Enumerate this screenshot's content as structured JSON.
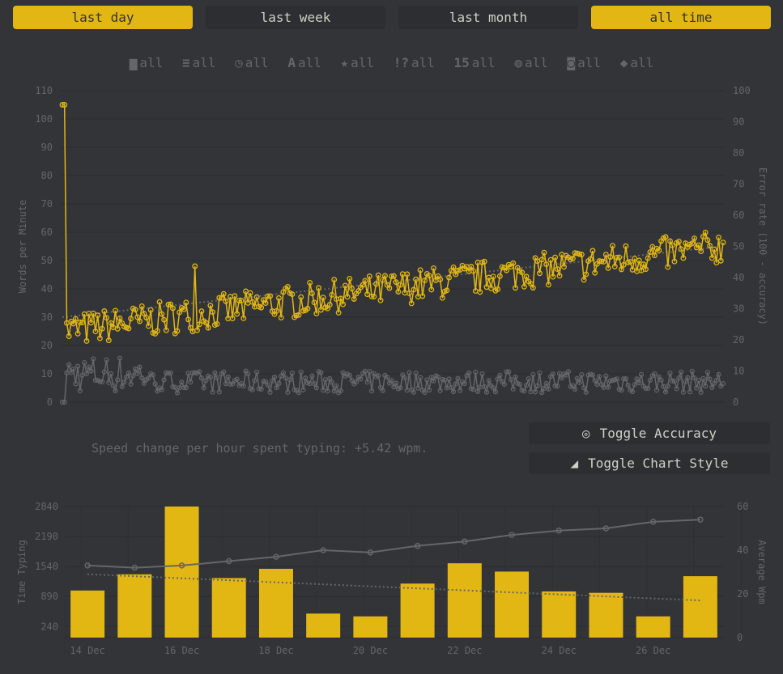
{
  "period_buttons": [
    "last day",
    "last week",
    "last month",
    "all time"
  ],
  "active_period": [
    "last day",
    "all time"
  ],
  "filters": [
    {
      "icon": "calendar-icon",
      "glyph": "▆",
      "label": "all"
    },
    {
      "icon": "list-icon",
      "glyph": "≡",
      "label": "all"
    },
    {
      "icon": "clock-icon",
      "glyph": "◷",
      "label": "all"
    },
    {
      "icon": "language-icon",
      "glyph": "A",
      "label": "all"
    },
    {
      "icon": "star-icon",
      "glyph": "★",
      "label": "all"
    },
    {
      "icon": "punctuation-icon",
      "glyph": "!?",
      "label": "all"
    },
    {
      "icon": "length-icon",
      "glyph": "15",
      "label": "all"
    },
    {
      "icon": "globe-icon",
      "glyph": "◍",
      "label": "all"
    },
    {
      "icon": "gamepad-icon",
      "glyph": "◙",
      "label": "all"
    },
    {
      "icon": "tag-icon",
      "glyph": "◆",
      "label": "all"
    }
  ],
  "speed_change": "Speed change per hour spent typing: +5.42 wpm.",
  "toggle_accuracy": "Toggle Accuracy",
  "toggle_chart_style": "Toggle Chart Style",
  "colors": {
    "accent": "#e2b714",
    "sub": "#646669",
    "bg": "#323437",
    "text": "#d1d0c5"
  },
  "chart_data": [
    {
      "type": "line",
      "ylabel": "Words per Minute",
      "y2label": "Error rate (100 - accuracy)",
      "ylim": [
        0,
        110
      ],
      "y2lim": [
        0,
        100
      ],
      "yticks": [
        0,
        10,
        20,
        30,
        40,
        50,
        60,
        70,
        80,
        90,
        100,
        110
      ],
      "y2ticks": [
        0,
        10,
        20,
        30,
        40,
        50,
        60,
        70,
        80,
        90,
        100
      ],
      "series": [
        {
          "values_summary": "approx. 300 tests; wpm rising from ~25 to ~55 with an initial outlier of 105"
        },
        {
          "values_summary": "error rate mostly 0-15"
        }
      ],
      "trend_start": 30,
      "trend_end": 55
    },
    {
      "type": "bar",
      "ylabel": "Time Typing",
      "y2label": "Average Wpm",
      "xticks": [
        "14 Dec",
        "16 Dec",
        "18 Dec",
        "20 Dec",
        "22 Dec",
        "24 Dec",
        "26 Dec"
      ],
      "yticks": [
        240,
        890,
        1540,
        2190,
        2840
      ],
      "y2ticks": [
        0,
        20,
        40,
        60
      ],
      "ylim": [
        0,
        2840
      ],
      "y2lim": [
        0,
        60
      ],
      "bars": [
        1020,
        1370,
        2840,
        1290,
        1490,
        520,
        460,
        1170,
        1610,
        1430,
        1000,
        970,
        460,
        1330
      ],
      "avg_wpm": [
        33,
        32,
        33,
        35,
        37,
        40,
        39,
        42,
        44,
        47,
        49,
        50,
        53,
        54
      ],
      "trend_start": 29,
      "trend_end": 17
    }
  ]
}
